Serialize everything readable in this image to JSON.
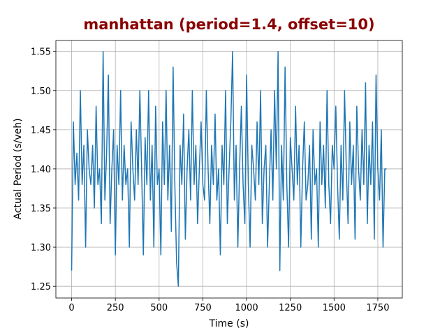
{
  "chart_data": {
    "type": "line",
    "title": "manhattan (period=1.4, offset=10)",
    "x_label": "Time (s)",
    "y_label": "Actual Period (s/veh)",
    "xlim": [
      -90,
      1890
    ],
    "ylim": [
      1.235,
      1.564
    ],
    "xticks": [
      0,
      250,
      500,
      750,
      1000,
      1250,
      1500,
      1750
    ],
    "yticks": [
      1.25,
      {
        "value": 1.3,
        "label": "1.30"
      },
      1.35,
      {
        "value": 1.4,
        "label": "1.40"
      },
      1.45,
      {
        "value": 1.5,
        "label": "1.50"
      },
      1.55
    ],
    "grid": true,
    "x": [
      0,
      10,
      20,
      30,
      40,
      50,
      60,
      70,
      80,
      90,
      100,
      110,
      120,
      130,
      140,
      150,
      160,
      170,
      180,
      190,
      200,
      210,
      220,
      230,
      240,
      250,
      260,
      270,
      280,
      290,
      300,
      310,
      320,
      330,
      340,
      350,
      360,
      370,
      380,
      390,
      400,
      410,
      420,
      430,
      440,
      450,
      460,
      470,
      480,
      490,
      500,
      510,
      520,
      530,
      540,
      550,
      560,
      570,
      580,
      590,
      600,
      610,
      620,
      630,
      640,
      650,
      660,
      670,
      680,
      690,
      700,
      710,
      720,
      730,
      740,
      750,
      760,
      770,
      780,
      790,
      800,
      810,
      820,
      830,
      840,
      850,
      860,
      870,
      880,
      890,
      900,
      910,
      920,
      930,
      940,
      950,
      960,
      970,
      980,
      990,
      1000,
      1010,
      1020,
      1030,
      1040,
      1050,
      1060,
      1070,
      1080,
      1090,
      1100,
      1110,
      1120,
      1130,
      1140,
      1150,
      1160,
      1170,
      1180,
      1190,
      1200,
      1210,
      1220,
      1230,
      1240,
      1250,
      1260,
      1270,
      1280,
      1290,
      1300,
      1310,
      1320,
      1330,
      1340,
      1350,
      1360,
      1370,
      1380,
      1390,
      1400,
      1410,
      1420,
      1430,
      1440,
      1450,
      1460,
      1470,
      1480,
      1490,
      1500,
      1510,
      1520,
      1530,
      1540,
      1550,
      1560,
      1570,
      1580,
      1590,
      1600,
      1610,
      1620,
      1630,
      1640,
      1650,
      1660,
      1670,
      1680,
      1690,
      1700,
      1710,
      1720,
      1730,
      1740,
      1750,
      1760,
      1770,
      1780,
      1790,
      1800
    ],
    "series": [
      {
        "name": "actual period",
        "color": "#1f77b4",
        "values": [
          1.27,
          1.46,
          1.38,
          1.42,
          1.36,
          1.5,
          1.38,
          1.43,
          1.3,
          1.45,
          1.4,
          1.38,
          1.43,
          1.35,
          1.48,
          1.38,
          1.4,
          1.33,
          1.55,
          1.36,
          1.42,
          1.52,
          1.33,
          1.4,
          1.45,
          1.29,
          1.43,
          1.38,
          1.5,
          1.36,
          1.43,
          1.38,
          1.4,
          1.3,
          1.46,
          1.4,
          1.36,
          1.45,
          1.38,
          1.5,
          1.4,
          1.29,
          1.44,
          1.38,
          1.5,
          1.36,
          1.43,
          1.3,
          1.48,
          1.38,
          1.4,
          1.29,
          1.46,
          1.38,
          1.5,
          1.36,
          1.43,
          1.32,
          1.53,
          1.38,
          1.28,
          1.25,
          1.43,
          1.38,
          1.47,
          1.31,
          1.4,
          1.45,
          1.36,
          1.5,
          1.38,
          1.43,
          1.33,
          1.4,
          1.46,
          1.38,
          1.36,
          1.5,
          1.4,
          1.33,
          1.43,
          1.38,
          1.47,
          1.36,
          1.4,
          1.29,
          1.43,
          1.38,
          1.5,
          1.33,
          1.4,
          1.46,
          1.55,
          1.36,
          1.43,
          1.3,
          1.4,
          1.48,
          1.38,
          1.33,
          1.52,
          1.38,
          1.3,
          1.43,
          1.4,
          1.36,
          1.46,
          1.38,
          1.5,
          1.33,
          1.4,
          1.43,
          1.3,
          1.38,
          1.45,
          1.36,
          1.5,
          1.4,
          1.55,
          1.27,
          1.43,
          1.36,
          1.53,
          1.38,
          1.3,
          1.44,
          1.4,
          1.36,
          1.48,
          1.38,
          1.43,
          1.3,
          1.4,
          1.46,
          1.36,
          1.38,
          1.43,
          1.31,
          1.45,
          1.38,
          1.4,
          1.3,
          1.46,
          1.38,
          1.43,
          1.35,
          1.5,
          1.38,
          1.33,
          1.43,
          1.4,
          1.48,
          1.38,
          1.31,
          1.43,
          1.36,
          1.5,
          1.4,
          1.33,
          1.46,
          1.38,
          1.43,
          1.31,
          1.48,
          1.4,
          1.36,
          1.45,
          1.38,
          1.51,
          1.33,
          1.43,
          1.38,
          1.46,
          1.31,
          1.52,
          1.4,
          1.36,
          1.45,
          1.3,
          1.4,
          1.4
        ]
      }
    ]
  }
}
